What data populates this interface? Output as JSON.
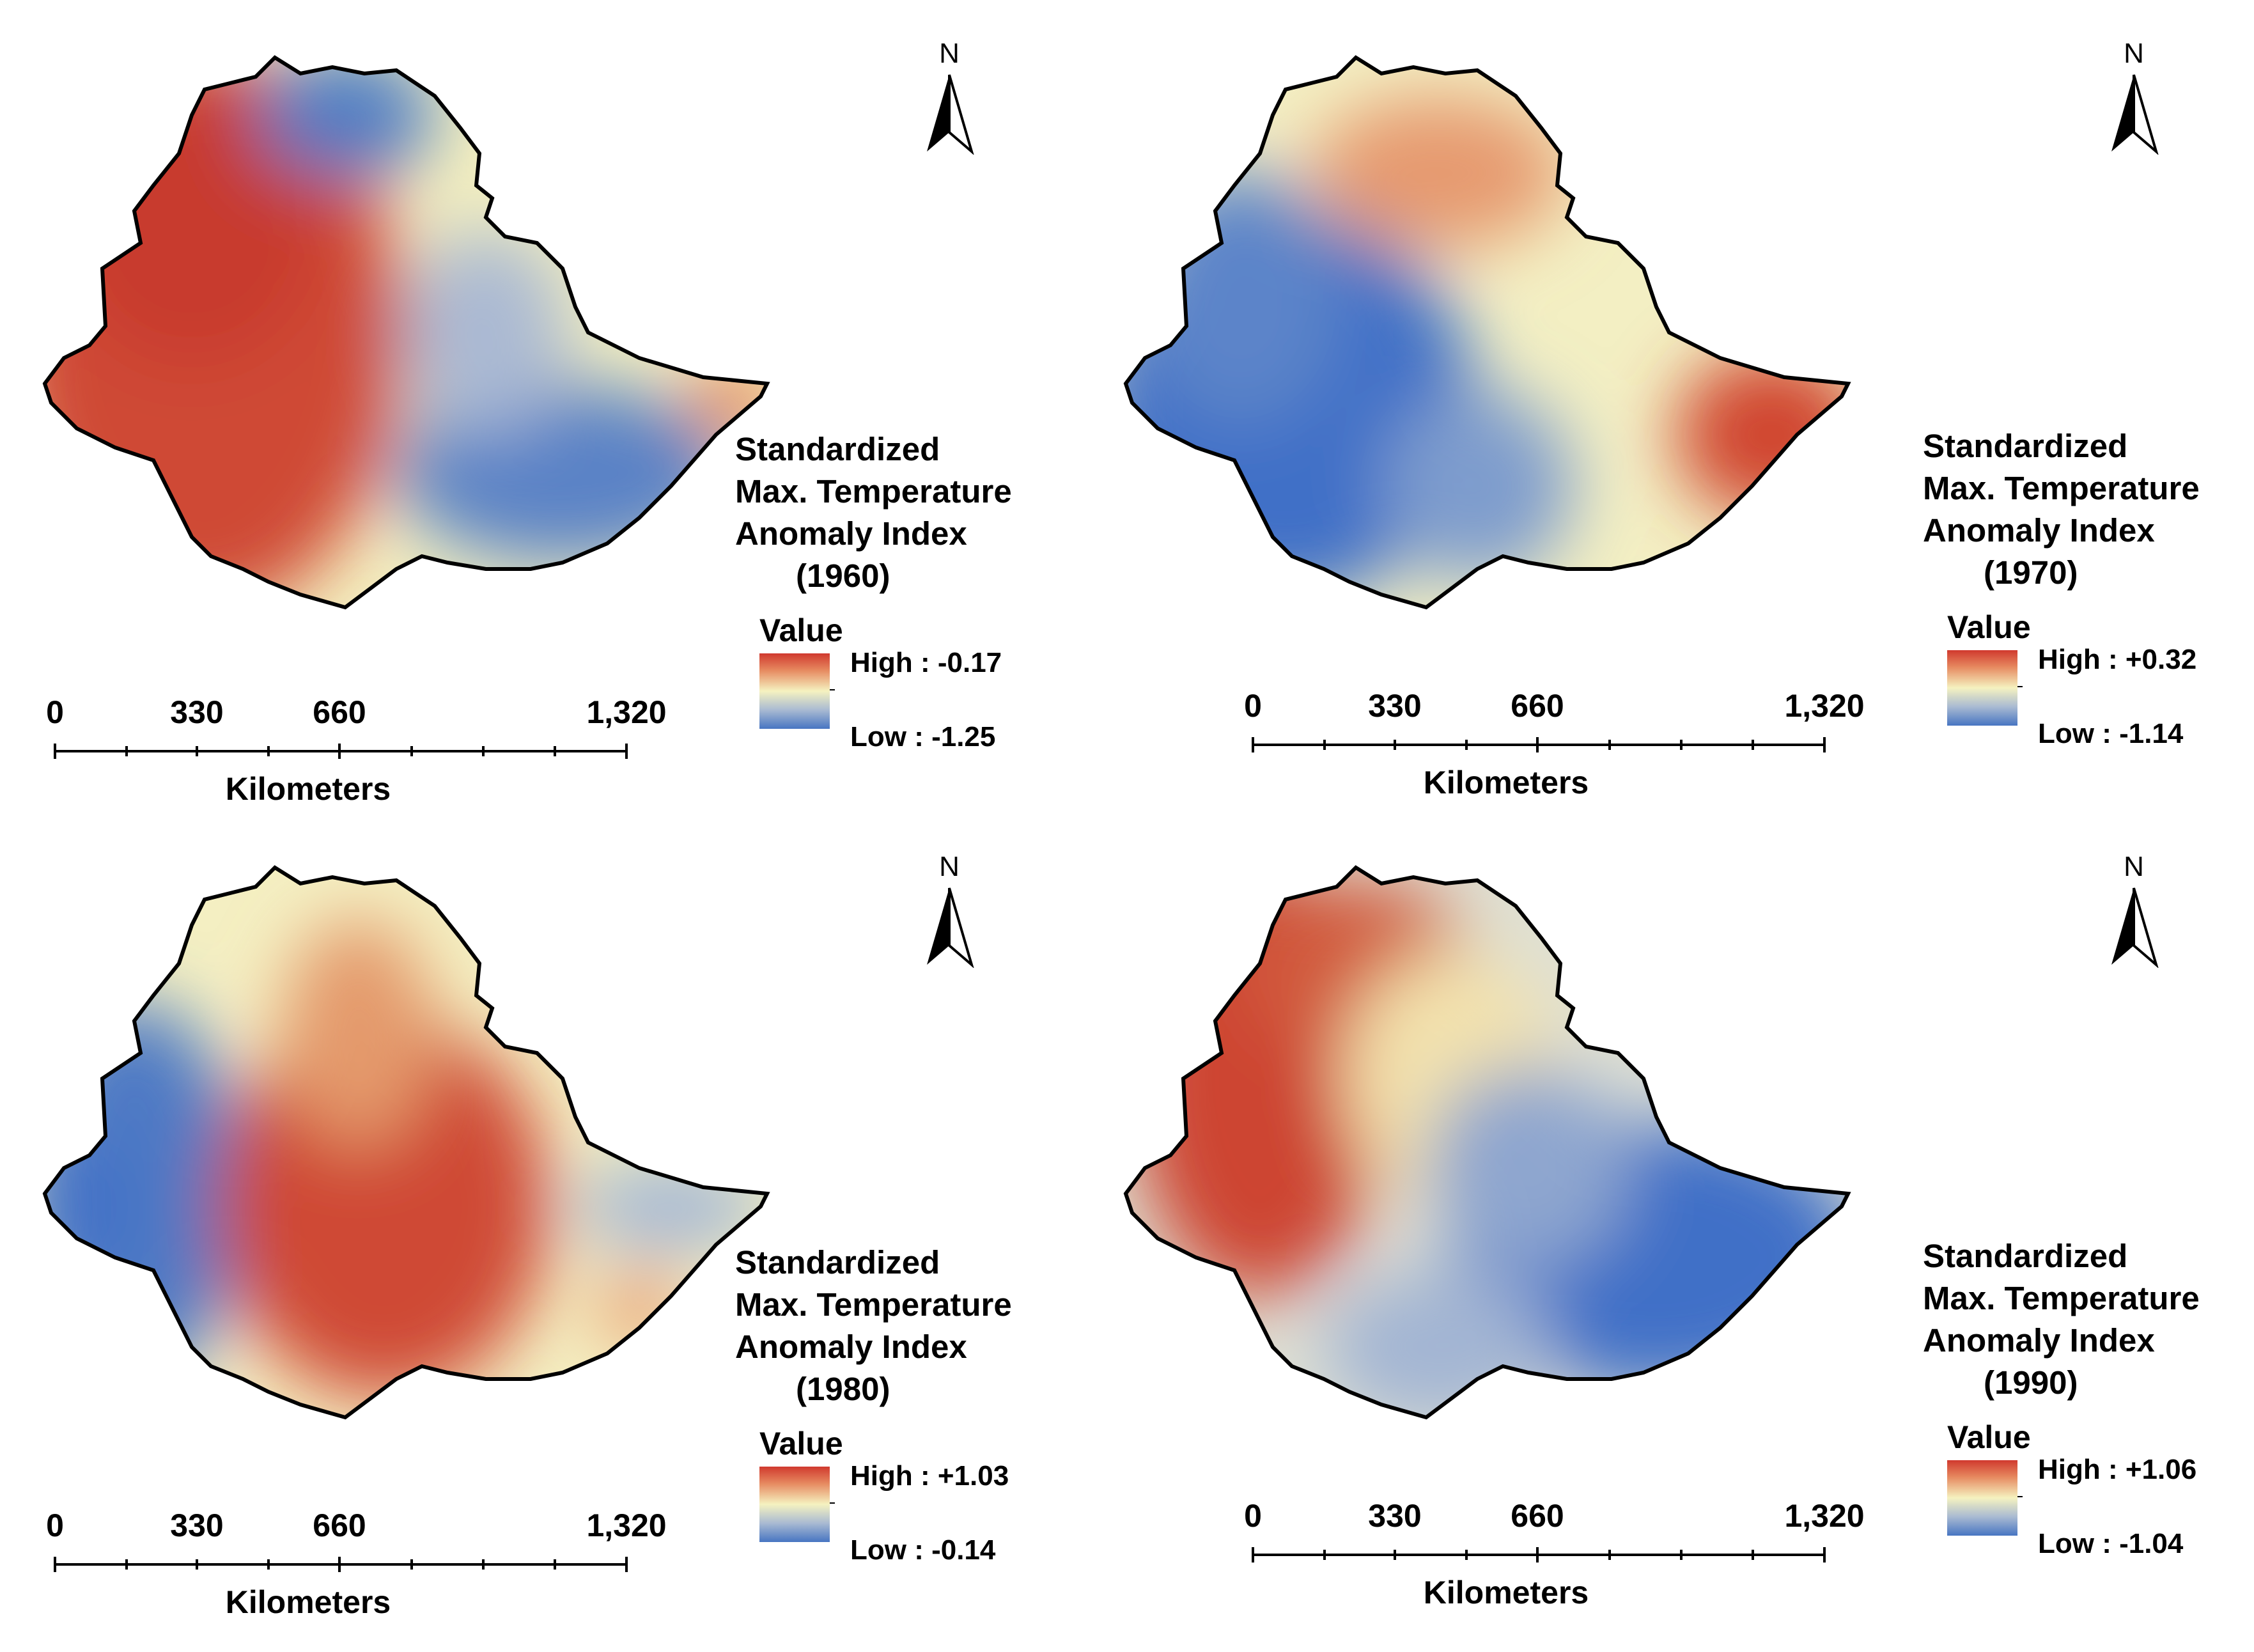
{
  "scale_bar": {
    "ticks": [
      "0",
      "330",
      "660",
      "1,320"
    ],
    "unit": "Kilometers"
  },
  "north_arrow": {
    "label": "N",
    "icon": "north-arrow-icon"
  },
  "legend_common": {
    "title_line1": "Standardized",
    "title_line2": "Max. Temperature",
    "title_line3": "Anomaly Index",
    "value_heading": "Value",
    "ramp_colors": {
      "high": "#d0392e",
      "mid": "#f5f2c0",
      "low": "#4775c2"
    }
  },
  "panels": [
    {
      "year_label": "(1960)",
      "high": "High : -0.17",
      "low": "Low : -1.25",
      "pattern": "warm west, cool northeast and southeast"
    },
    {
      "year_label": "(1970)",
      "high": "High : +0.32",
      "low": "Low : -1.14",
      "pattern": "warm north and east tip, cool west and southwest"
    },
    {
      "year_label": "(1980)",
      "high": "High : +1.03",
      "low": "Low : -0.14",
      "pattern": "warm center, cool west and east"
    },
    {
      "year_label": "(1990)",
      "high": "High : +1.06",
      "low": "Low : -1.04",
      "pattern": "warm northwest, cool southeast"
    }
  ]
}
